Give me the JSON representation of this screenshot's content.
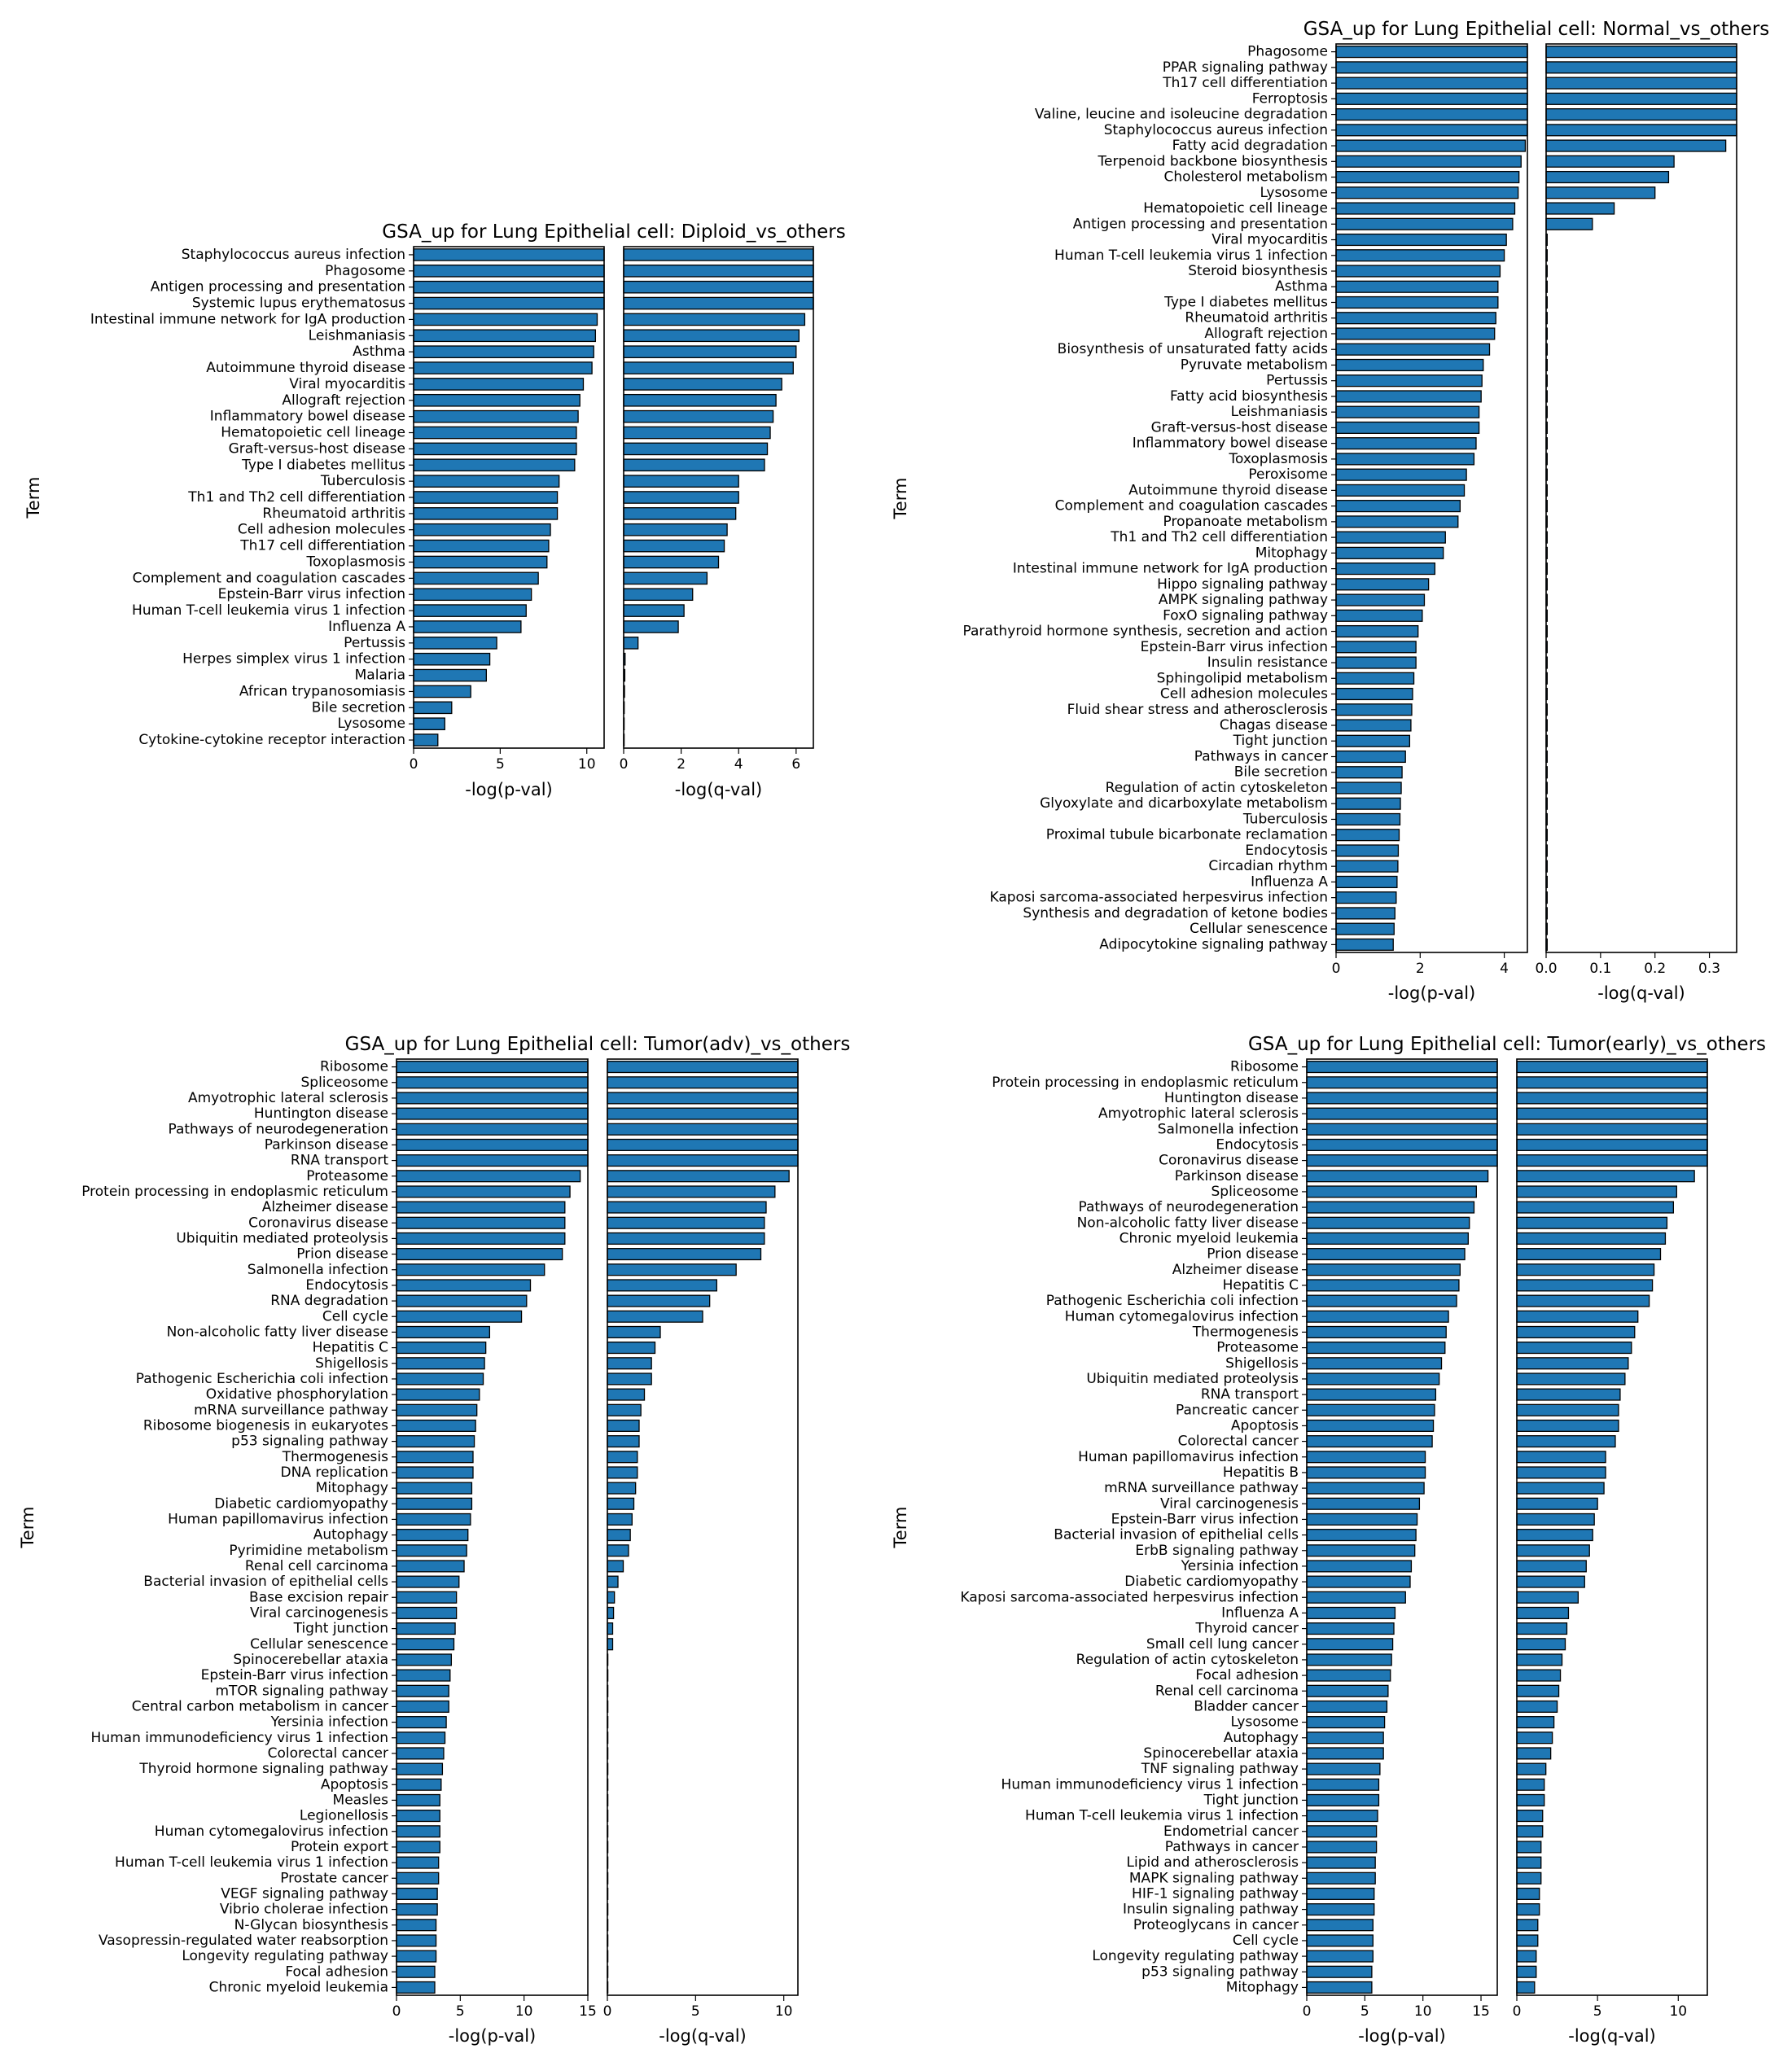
{
  "style": {
    "bar_color": "#1f77b4",
    "edge_color": "#000000",
    "axes_color": "#000000",
    "background": "#ffffff"
  },
  "chart_data": [
    {
      "type": "bar",
      "orientation": "horizontal",
      "title": "GSA_up for Lung Epithelial cell: Diploid_vs_others",
      "ylabel": "Term",
      "categories": [
        "Staphylococcus aureus infection",
        "Phagosome",
        "Antigen processing and presentation",
        "Systemic lupus erythematosus",
        "Intestinal immune network for IgA production",
        "Leishmaniasis",
        "Asthma",
        "Autoimmune thyroid disease",
        "Viral myocarditis",
        "Allograft rejection",
        "Inflammatory bowel disease",
        "Hematopoietic cell lineage",
        "Graft-versus-host disease",
        "Type I diabetes mellitus",
        "Tuberculosis",
        "Th1 and Th2 cell differentiation",
        "Rheumatoid arthritis",
        "Cell adhesion molecules",
        "Th17 cell differentiation",
        "Toxoplasmosis",
        "Complement and coagulation cascades",
        "Epstein-Barr virus infection",
        "Human T-cell leukemia virus 1 infection",
        "Influenza A",
        "Pertussis",
        "Herpes simplex virus 1 infection",
        "Malaria",
        "African trypanosomiasis",
        "Bile secretion",
        "Lysosome",
        "Cytokine-cytokine receptor interaction"
      ],
      "panels": [
        {
          "xlabel": "-log(p-val)",
          "xlim": [
            0,
            11
          ],
          "xticks": [
            0,
            5,
            10
          ],
          "values": [
            11,
            11,
            11,
            11,
            10.6,
            10.5,
            10.4,
            10.3,
            9.8,
            9.6,
            9.5,
            9.4,
            9.4,
            9.3,
            8.4,
            8.3,
            8.3,
            7.9,
            7.8,
            7.7,
            7.2,
            6.8,
            6.5,
            6.2,
            4.8,
            4.4,
            4.2,
            3.3,
            2.2,
            1.8,
            1.4
          ]
        },
        {
          "xlabel": "-log(q-val)",
          "xlim": [
            0,
            6.6
          ],
          "xticks": [
            0,
            2,
            4,
            6
          ],
          "values": [
            6.6,
            6.6,
            6.6,
            6.6,
            6.3,
            6.1,
            6.0,
            5.9,
            5.5,
            5.3,
            5.2,
            5.1,
            5.0,
            4.9,
            4.0,
            4.0,
            3.9,
            3.6,
            3.5,
            3.3,
            2.9,
            2.4,
            2.1,
            1.9,
            0.5,
            0.05,
            0.04,
            0.03,
            0.02,
            0.01,
            0.01
          ]
        }
      ]
    },
    {
      "type": "bar",
      "orientation": "horizontal",
      "title": "GSA_up for Lung Epithelial cell: Normal_vs_others",
      "ylabel": "Term",
      "categories": [
        "Phagosome",
        "PPAR signaling pathway",
        "Th17 cell differentiation",
        "Ferroptosis",
        "Valine, leucine and isoleucine degradation",
        "Staphylococcus aureus infection",
        "Fatty acid degradation",
        "Terpenoid backbone biosynthesis",
        "Cholesterol metabolism",
        "Lysosome",
        "Hematopoietic cell lineage",
        "Antigen processing and presentation",
        "Viral myocarditis",
        "Human T-cell leukemia virus 1 infection",
        "Steroid biosynthesis",
        "Asthma",
        "Type I diabetes mellitus",
        "Rheumatoid arthritis",
        "Allograft rejection",
        "Biosynthesis of unsaturated fatty acids",
        "Pyruvate metabolism",
        "Pertussis",
        "Fatty acid biosynthesis",
        "Leishmaniasis",
        "Graft-versus-host disease",
        "Inflammatory bowel disease",
        "Toxoplasmosis",
        "Peroxisome",
        "Autoimmune thyroid disease",
        "Complement and coagulation cascades",
        "Propanoate metabolism",
        "Th1 and Th2 cell differentiation",
        "Mitophagy",
        "Intestinal immune network for IgA production",
        "Hippo signaling pathway",
        "AMPK signaling pathway",
        "FoxO signaling pathway",
        "Parathyroid hormone synthesis, secretion and action",
        "Epstein-Barr virus infection",
        "Insulin resistance",
        "Sphingolipid metabolism",
        "Cell adhesion molecules",
        "Fluid shear stress and atherosclerosis",
        "Chagas disease",
        "Tight junction",
        "Pathways in cancer",
        "Bile secretion",
        "Regulation of actin cytoskeleton",
        "Glyoxylate and dicarboxylate metabolism",
        "Tuberculosis",
        "Proximal tubule bicarbonate reclamation",
        "Endocytosis",
        "Circadian rhythm",
        "Influenza A",
        "Kaposi sarcoma-associated herpesvirus infection",
        "Synthesis and degradation of ketone bodies",
        "Cellular senescence",
        "Adipocytokine signaling pathway"
      ],
      "panels": [
        {
          "xlabel": "-log(p-val)",
          "xlim": [
            0,
            4.55
          ],
          "xticks": [
            0,
            2,
            4
          ],
          "values": [
            4.55,
            4.55,
            4.55,
            4.55,
            4.55,
            4.55,
            4.5,
            4.4,
            4.35,
            4.33,
            4.25,
            4.2,
            4.05,
            4.0,
            3.9,
            3.85,
            3.85,
            3.8,
            3.77,
            3.65,
            3.5,
            3.47,
            3.45,
            3.4,
            3.4,
            3.33,
            3.28,
            3.1,
            3.05,
            2.95,
            2.9,
            2.6,
            2.55,
            2.35,
            2.2,
            2.1,
            2.05,
            1.95,
            1.9,
            1.9,
            1.85,
            1.82,
            1.8,
            1.78,
            1.75,
            1.65,
            1.57,
            1.55,
            1.53,
            1.52,
            1.5,
            1.48,
            1.47,
            1.45,
            1.43,
            1.4,
            1.38,
            1.36
          ]
        },
        {
          "xlabel": "-log(q-val)",
          "xlim": [
            0,
            0.35
          ],
          "xticks": [
            0.0,
            0.1,
            0.2,
            0.3
          ],
          "values": [
            0.35,
            0.35,
            0.35,
            0.35,
            0.35,
            0.35,
            0.33,
            0.235,
            0.225,
            0.2,
            0.125,
            0.085,
            0.002,
            0.002,
            0.002,
            0.002,
            0.002,
            0.002,
            0.002,
            0.002,
            0.002,
            0.002,
            0.002,
            0.002,
            0.002,
            0.002,
            0.002,
            0.002,
            0.002,
            0.002,
            0.002,
            0.002,
            0.002,
            0.002,
            0.002,
            0.002,
            0.002,
            0.002,
            0.002,
            0.002,
            0.002,
            0.002,
            0.002,
            0.002,
            0.002,
            0.002,
            0.002,
            0.002,
            0.002,
            0.002,
            0.002,
            0.002,
            0.002,
            0.002,
            0.002,
            0.002,
            0.002,
            0.002
          ]
        }
      ]
    },
    {
      "type": "bar",
      "orientation": "horizontal",
      "title": "GSA_up for Lung Epithelial cell: Tumor(adv)_vs_others",
      "ylabel": "Term",
      "categories": [
        "Ribosome",
        "Spliceosome",
        "Amyotrophic lateral sclerosis",
        "Huntington disease",
        "Pathways of neurodegeneration",
        "Parkinson disease",
        "RNA transport",
        "Proteasome",
        "Protein processing in endoplasmic reticulum",
        "Alzheimer disease",
        "Coronavirus disease",
        "Ubiquitin mediated proteolysis",
        "Prion disease",
        "Salmonella infection",
        "Endocytosis",
        "RNA degradation",
        "Cell cycle",
        "Non-alcoholic fatty liver disease",
        "Hepatitis C",
        "Shigellosis",
        "Pathogenic Escherichia coli infection",
        "Oxidative phosphorylation",
        "mRNA surveillance pathway",
        "Ribosome biogenesis in eukaryotes",
        "p53 signaling pathway",
        "Thermogenesis",
        "DNA replication",
        "Mitophagy",
        "Diabetic cardiomyopathy",
        "Human papillomavirus infection",
        "Autophagy",
        "Pyrimidine metabolism",
        "Renal cell carcinoma",
        "Bacterial invasion of epithelial cells",
        "Base excision repair",
        "Viral carcinogenesis",
        "Tight junction",
        "Cellular senescence",
        "Spinocerebellar ataxia",
        "Epstein-Barr virus infection",
        "mTOR signaling pathway",
        "Central carbon metabolism in cancer",
        "Yersinia infection",
        "Human immunodeficiency virus 1 infection",
        "Colorectal cancer",
        "Thyroid hormone signaling pathway",
        "Apoptosis",
        "Measles",
        "Legionellosis",
        "Human cytomegalovirus infection",
        "Protein export",
        "Human T-cell leukemia virus 1 infection",
        "Prostate cancer",
        "VEGF signaling pathway",
        "Vibrio cholerae infection",
        "N-Glycan biosynthesis",
        "Vasopressin-regulated water reabsorption",
        "Longevity regulating pathway",
        "Focal adhesion",
        "Chronic myeloid leukemia"
      ],
      "panels": [
        {
          "xlabel": "-log(p-val)",
          "xlim": [
            0,
            15
          ],
          "xticks": [
            0,
            5,
            10,
            15
          ],
          "values": [
            15,
            15,
            15,
            15,
            15,
            15,
            15,
            14.4,
            13.6,
            13.2,
            13.2,
            13.2,
            13.0,
            11.6,
            10.5,
            10.2,
            9.8,
            7.3,
            7.0,
            6.9,
            6.8,
            6.5,
            6.3,
            6.2,
            6.1,
            6.0,
            6.0,
            5.9,
            5.9,
            5.8,
            5.6,
            5.5,
            5.3,
            4.9,
            4.7,
            4.7,
            4.6,
            4.5,
            4.3,
            4.2,
            4.1,
            4.1,
            3.9,
            3.8,
            3.7,
            3.6,
            3.5,
            3.4,
            3.4,
            3.4,
            3.4,
            3.3,
            3.3,
            3.2,
            3.2,
            3.1,
            3.1,
            3.1,
            3.0,
            3.0
          ]
        },
        {
          "xlabel": "-log(q-val)",
          "xlim": [
            0,
            10.8
          ],
          "xticks": [
            0,
            5,
            10
          ],
          "values": [
            10.8,
            10.8,
            10.8,
            10.8,
            10.8,
            10.8,
            10.8,
            10.3,
            9.5,
            9.0,
            8.9,
            8.9,
            8.7,
            7.3,
            6.2,
            5.8,
            5.4,
            3.0,
            2.7,
            2.5,
            2.5,
            2.1,
            1.9,
            1.8,
            1.8,
            1.7,
            1.7,
            1.6,
            1.5,
            1.4,
            1.3,
            1.2,
            0.9,
            0.6,
            0.4,
            0.35,
            0.3,
            0.3,
            0.01,
            0.01,
            0.01,
            0.01,
            0.01,
            0.01,
            0.01,
            0.01,
            0.01,
            0.01,
            0.01,
            0.01,
            0.01,
            0.01,
            0.01,
            0.01,
            0.01,
            0.01,
            0.01,
            0.01,
            0.01,
            0.01
          ]
        }
      ]
    },
    {
      "type": "bar",
      "orientation": "horizontal",
      "title": "GSA_up for Lung Epithelial cell: Tumor(early)_vs_others",
      "ylabel": "Term",
      "categories": [
        "Ribosome",
        "Protein processing in endoplasmic reticulum",
        "Huntington disease",
        "Amyotrophic lateral sclerosis",
        "Salmonella infection",
        "Endocytosis",
        "Coronavirus disease",
        "Parkinson disease",
        "Spliceosome",
        "Pathways of neurodegeneration",
        "Non-alcoholic fatty liver disease",
        "Chronic myeloid leukemia",
        "Prion disease",
        "Alzheimer disease",
        "Hepatitis C",
        "Pathogenic Escherichia coli infection",
        "Human cytomegalovirus infection",
        "Thermogenesis",
        "Proteasome",
        "Shigellosis",
        "Ubiquitin mediated proteolysis",
        "RNA transport",
        "Pancreatic cancer",
        "Apoptosis",
        "Colorectal cancer",
        "Human papillomavirus infection",
        "Hepatitis B",
        "mRNA surveillance pathway",
        "Viral carcinogenesis",
        "Epstein-Barr virus infection",
        "Bacterial invasion of epithelial cells",
        "ErbB signaling pathway",
        "Yersinia infection",
        "Diabetic cardiomyopathy",
        "Kaposi sarcoma-associated herpesvirus infection",
        "Influenza A",
        "Thyroid cancer",
        "Small cell lung cancer",
        "Regulation of actin cytoskeleton",
        "Focal adhesion",
        "Renal cell carcinoma",
        "Bladder cancer",
        "Lysosome",
        "Autophagy",
        "Spinocerebellar ataxia",
        "TNF signaling pathway",
        "Human immunodeficiency virus 1 infection",
        "Tight junction",
        "Human T-cell leukemia virus 1 infection",
        "Endometrial cancer",
        "Pathways in cancer",
        "Lipid and atherosclerosis",
        "MAPK signaling pathway",
        "HIF-1 signaling pathway",
        "Insulin signaling pathway",
        "Proteoglycans in cancer",
        "Cell cycle",
        "Longevity regulating pathway",
        "p53 signaling pathway",
        "Mitophagy"
      ],
      "panels": [
        {
          "xlabel": "-log(p-val)",
          "xlim": [
            0,
            16.4
          ],
          "xticks": [
            0,
            5,
            10,
            15
          ],
          "values": [
            16.4,
            16.4,
            16.4,
            16.4,
            16.4,
            16.4,
            16.4,
            15.6,
            14.6,
            14.4,
            14.0,
            13.9,
            13.6,
            13.2,
            13.1,
            12.9,
            12.2,
            12.0,
            11.9,
            11.6,
            11.4,
            11.1,
            11.0,
            10.9,
            10.8,
            10.2,
            10.2,
            10.1,
            9.7,
            9.5,
            9.4,
            9.3,
            9.0,
            8.9,
            8.5,
            7.6,
            7.5,
            7.4,
            7.3,
            7.2,
            7.0,
            6.9,
            6.7,
            6.6,
            6.6,
            6.3,
            6.2,
            6.2,
            6.1,
            6.0,
            6.0,
            5.9,
            5.9,
            5.8,
            5.8,
            5.7,
            5.7,
            5.7,
            5.6,
            5.6
          ]
        },
        {
          "xlabel": "-log(q-val)",
          "xlim": [
            0,
            11.8
          ],
          "xticks": [
            0,
            5,
            10
          ],
          "values": [
            11.8,
            11.8,
            11.8,
            11.8,
            11.8,
            11.8,
            11.8,
            11.0,
            9.9,
            9.7,
            9.3,
            9.2,
            8.9,
            8.5,
            8.4,
            8.2,
            7.5,
            7.3,
            7.1,
            6.9,
            6.7,
            6.4,
            6.3,
            6.3,
            6.1,
            5.5,
            5.5,
            5.4,
            5.0,
            4.8,
            4.7,
            4.5,
            4.3,
            4.2,
            3.8,
            3.2,
            3.1,
            3.0,
            2.8,
            2.7,
            2.6,
            2.5,
            2.3,
            2.2,
            2.1,
            1.8,
            1.7,
            1.7,
            1.6,
            1.6,
            1.5,
            1.5,
            1.5,
            1.4,
            1.4,
            1.3,
            1.3,
            1.2,
            1.2,
            1.1
          ]
        }
      ]
    }
  ]
}
